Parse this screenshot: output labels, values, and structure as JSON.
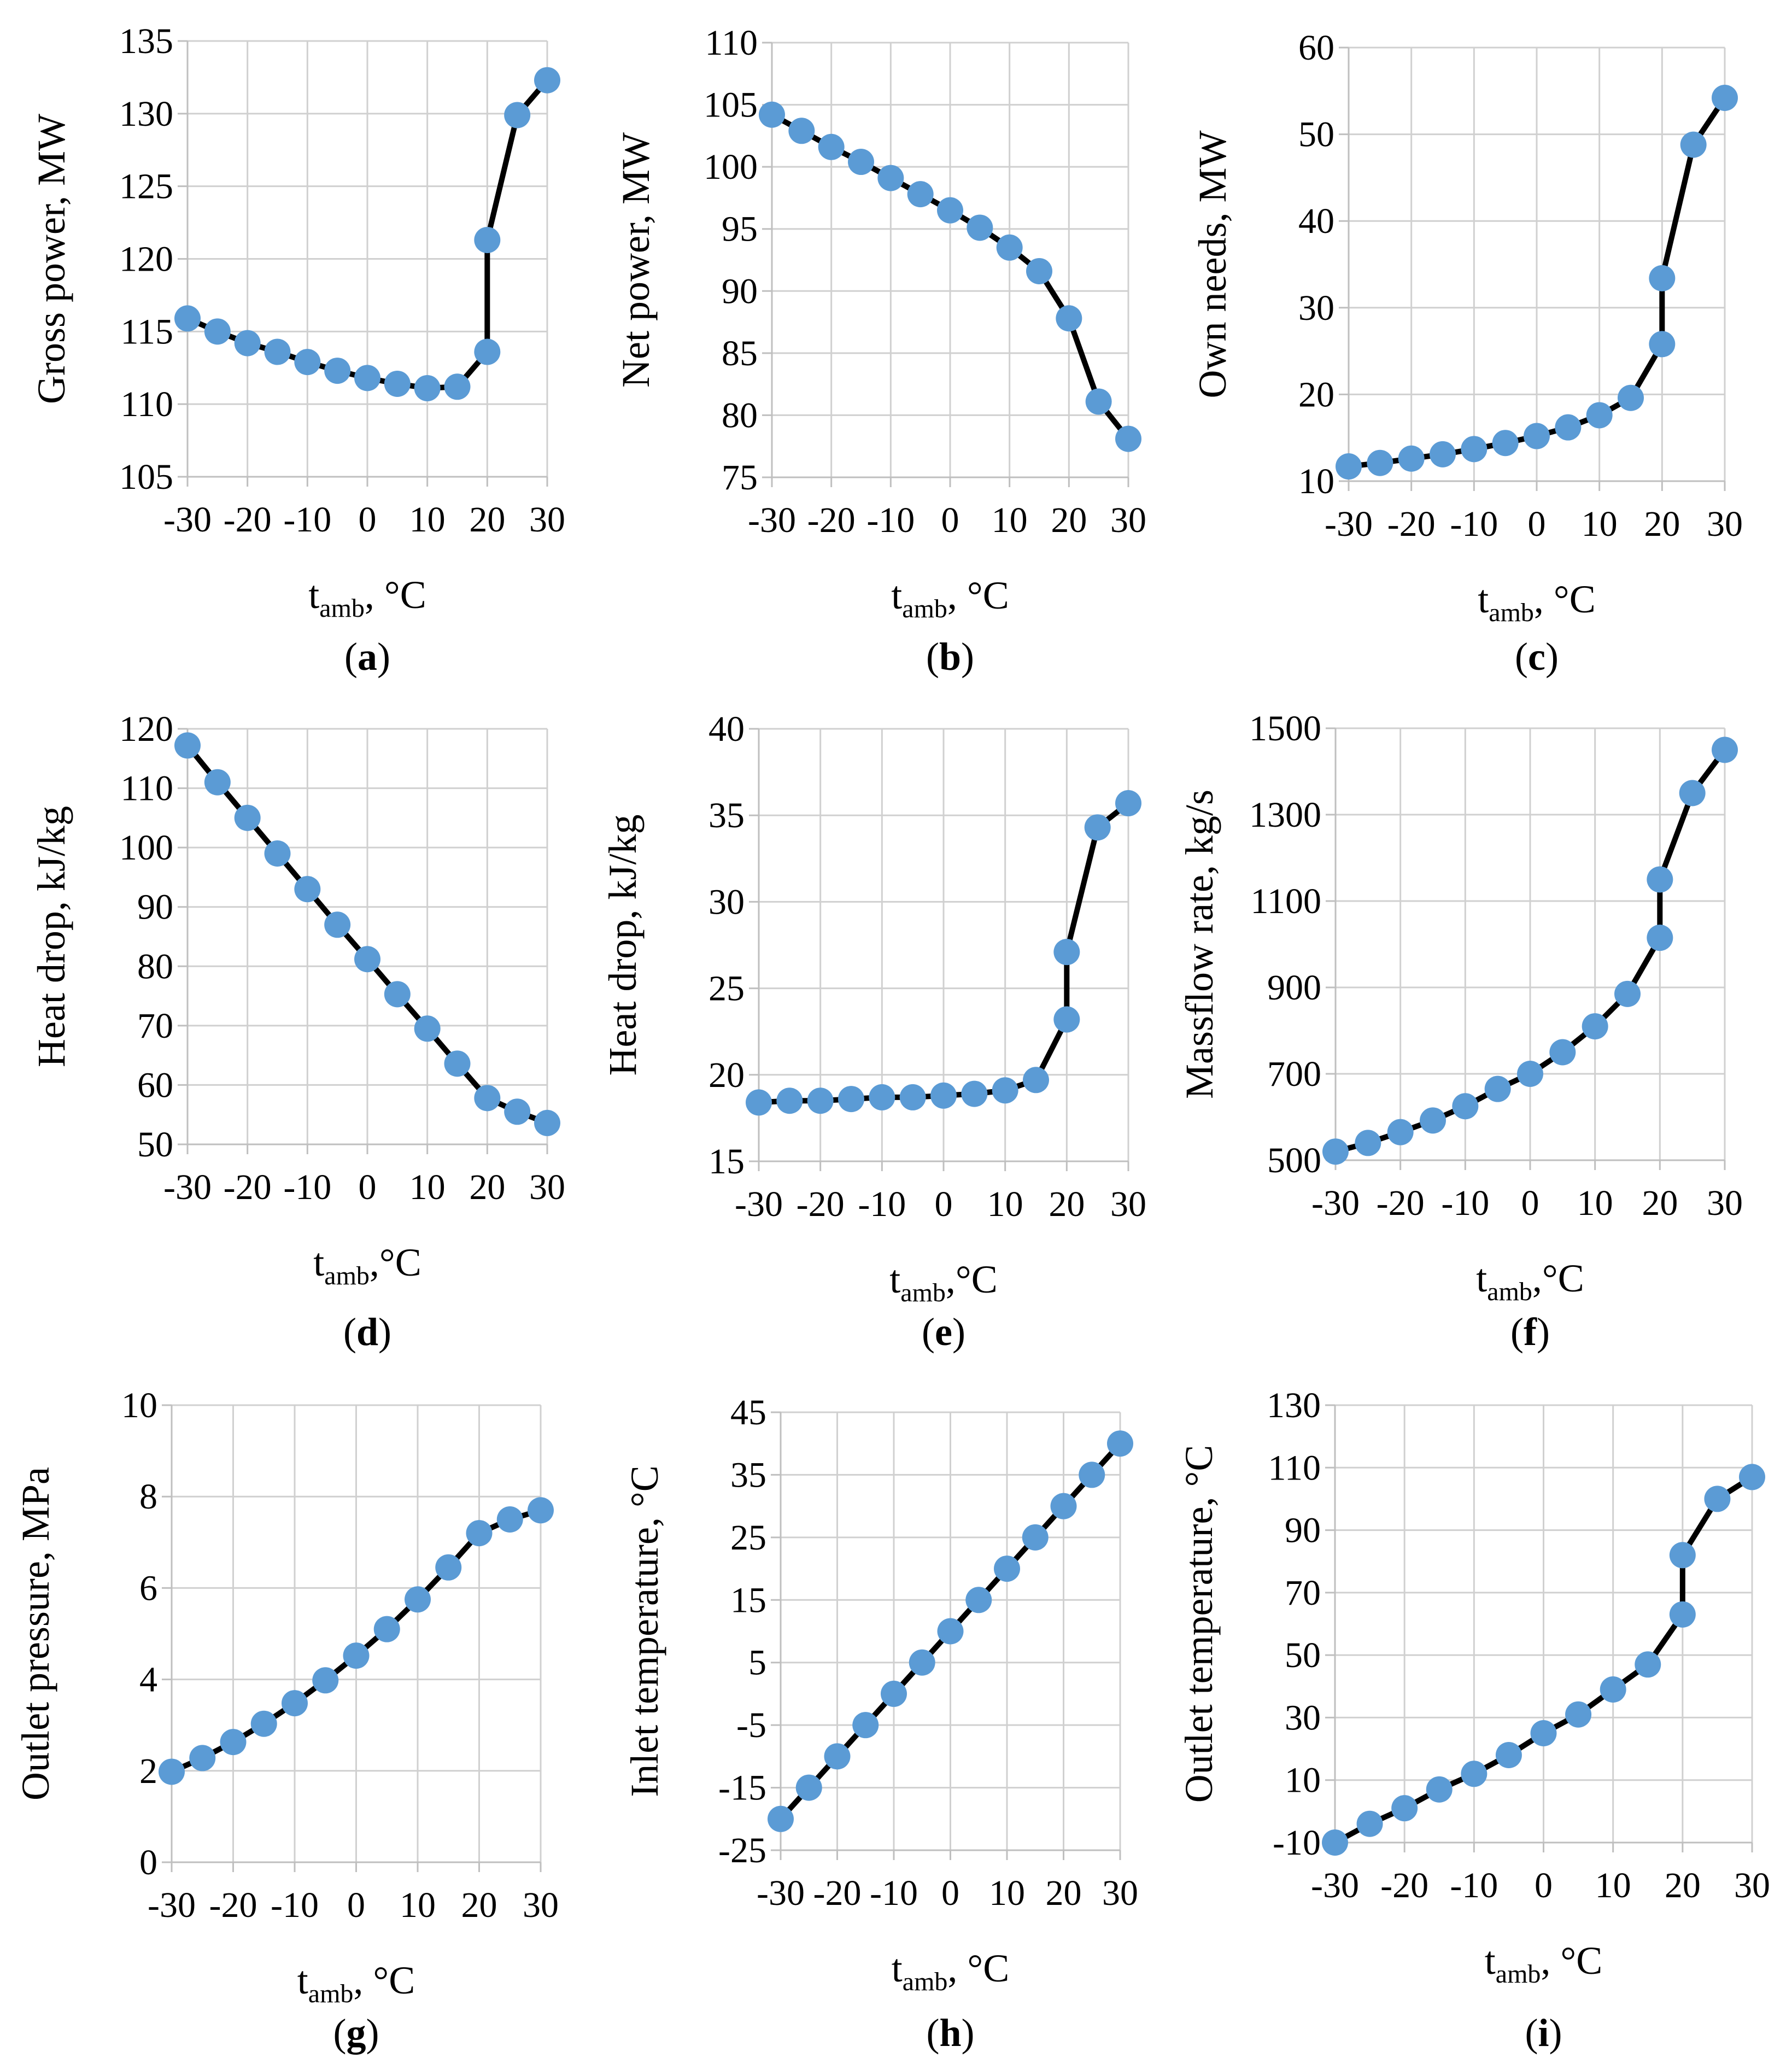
{
  "figure": {
    "colors": {
      "line": "#000000",
      "marker": "#5b9bd5",
      "grid": "#d0d0d0",
      "axis": "#bfbfbf"
    },
    "x_common": [
      -30,
      -25,
      -20,
      -15,
      -10,
      -5,
      0,
      5,
      10,
      15,
      20,
      20,
      25,
      30
    ]
  },
  "chart_data": [
    {
      "id": "a",
      "caption": "a",
      "type": "line",
      "ylabel": "Gross power, MW",
      "xlabel_main": "t",
      "xlabel_sub": "amb",
      "xlabel_unit": ", °C",
      "ylim": [
        105,
        135
      ],
      "yticks": [
        105,
        110,
        115,
        120,
        125,
        130,
        135
      ],
      "xlim": [
        -30,
        30
      ],
      "xticks": [
        -30,
        -20,
        -10,
        0,
        10,
        20,
        30
      ],
      "x": [
        -30,
        -25,
        -20,
        -15,
        -10,
        -5,
        0,
        5,
        10,
        15,
        20,
        20,
        25,
        30
      ],
      "y": [
        115.9,
        115.0,
        114.2,
        113.6,
        112.9,
        112.3,
        111.8,
        111.4,
        111.1,
        111.2,
        113.6,
        121.3,
        129.9,
        132.3
      ]
    },
    {
      "id": "b",
      "caption": "b",
      "type": "line",
      "ylabel": "Net power, MW",
      "xlabel_main": "t",
      "xlabel_sub": "amb",
      "xlabel_unit": ", °C",
      "ylim": [
        75,
        110
      ],
      "yticks": [
        75,
        80,
        85,
        90,
        95,
        100,
        105,
        110
      ],
      "xlim": [
        -30,
        30
      ],
      "xticks": [
        -30,
        -20,
        -10,
        0,
        10,
        20,
        30
      ],
      "x": [
        -30,
        -25,
        -20,
        -15,
        -10,
        -5,
        0,
        5,
        10,
        15,
        20,
        25,
        30
      ],
      "y": [
        104.2,
        102.9,
        101.6,
        100.4,
        99.1,
        97.8,
        96.5,
        95.1,
        93.5,
        91.6,
        87.8,
        81.1,
        78.1
      ]
    },
    {
      "id": "c",
      "caption": "c",
      "type": "line",
      "ylabel": "Own needs, MW",
      "xlabel_main": "t",
      "xlabel_sub": "amb",
      "xlabel_unit": ", °C",
      "ylim": [
        10,
        60
      ],
      "yticks": [
        10,
        20,
        30,
        40,
        50,
        60
      ],
      "xlim": [
        -30,
        30
      ],
      "xticks": [
        -30,
        -20,
        -10,
        0,
        10,
        20,
        30
      ],
      "x": [
        -30,
        -25,
        -20,
        -15,
        -10,
        -5,
        0,
        5,
        10,
        15,
        20,
        20,
        25,
        30
      ],
      "y": [
        11.7,
        12.1,
        12.6,
        13.1,
        13.7,
        14.4,
        15.2,
        16.2,
        17.6,
        19.6,
        25.8,
        33.4,
        48.8,
        54.2
      ]
    },
    {
      "id": "d",
      "caption": "d",
      "type": "line",
      "ylabel": "Heat drop, kJ/kg",
      "xlabel_main": "t",
      "xlabel_sub": "amb",
      "xlabel_unit": ",°C",
      "ylim": [
        50,
        120
      ],
      "yticks": [
        50,
        60,
        70,
        80,
        90,
        100,
        110,
        120
      ],
      "xlim": [
        -30,
        30
      ],
      "xticks": [
        -30,
        -20,
        -10,
        0,
        10,
        20,
        30
      ],
      "x": [
        -30,
        -25,
        -20,
        -15,
        -10,
        -5,
        0,
        5,
        10,
        15,
        20,
        25,
        30
      ],
      "y": [
        117.2,
        111.0,
        105.0,
        99.0,
        93.0,
        87.0,
        81.2,
        75.3,
        69.5,
        63.6,
        57.8,
        55.5,
        53.6
      ]
    },
    {
      "id": "e",
      "caption": "e",
      "type": "line",
      "ylabel": "Heat drop, kJ/kg",
      "xlabel_main": "t",
      "xlabel_sub": "amb",
      "xlabel_unit": ",°C",
      "ylim": [
        15,
        40
      ],
      "yticks": [
        15,
        20,
        25,
        30,
        35,
        40
      ],
      "xlim": [
        -30,
        30
      ],
      "xticks": [
        -30,
        -20,
        -10,
        0,
        10,
        20,
        30
      ],
      "x": [
        -30,
        -25,
        -20,
        -15,
        -10,
        -5,
        0,
        5,
        10,
        15,
        20,
        20,
        25,
        30
      ],
      "y": [
        18.4,
        18.5,
        18.5,
        18.6,
        18.7,
        18.7,
        18.8,
        18.9,
        19.1,
        19.7,
        23.2,
        27.1,
        34.3,
        35.7
      ]
    },
    {
      "id": "f",
      "caption": "f",
      "type": "line",
      "ylabel": "Massflow rate, kg/s",
      "xlabel_main": "t",
      "xlabel_sub": "amb",
      "xlabel_unit": ",°C",
      "ylim": [
        500,
        1500
      ],
      "yticks": [
        500,
        700,
        900,
        1100,
        1300,
        1500
      ],
      "xlim": [
        -30,
        30
      ],
      "xticks": [
        -30,
        -20,
        -10,
        0,
        10,
        20,
        30
      ],
      "x": [
        -30,
        -25,
        -20,
        -15,
        -10,
        -5,
        0,
        5,
        10,
        15,
        20,
        20,
        25,
        30
      ],
      "y": [
        520,
        540,
        565,
        592,
        625,
        665,
        700,
        750,
        810,
        885,
        1015,
        1150,
        1350,
        1450
      ]
    },
    {
      "id": "g",
      "caption": "g",
      "type": "line",
      "ylabel": "Outlet pressure, MPa",
      "xlabel_main": "t",
      "xlabel_sub": "amb",
      "xlabel_unit": ", °C",
      "ylim": [
        0,
        10
      ],
      "yticks": [
        0,
        2,
        4,
        6,
        8,
        10
      ],
      "xlim": [
        -30,
        30
      ],
      "xticks": [
        -30,
        -20,
        -10,
        0,
        10,
        20,
        30
      ],
      "x": [
        -30,
        -25,
        -20,
        -15,
        -10,
        -5,
        0,
        5,
        10,
        15,
        20,
        25,
        30
      ],
      "y": [
        1.98,
        2.28,
        2.63,
        3.03,
        3.48,
        3.98,
        4.52,
        5.1,
        5.75,
        6.45,
        7.2,
        7.5,
        7.7
      ]
    },
    {
      "id": "h",
      "caption": "h",
      "type": "line",
      "ylabel": "Inlet temperature, °C",
      "xlabel_main": "t",
      "xlabel_sub": "amb",
      "xlabel_unit": ", °C",
      "ylim": [
        -25,
        45
      ],
      "yticks": [
        -25,
        -15,
        -5,
        5,
        15,
        25,
        35,
        45
      ],
      "xlim": [
        -30,
        30
      ],
      "xticks": [
        -30,
        -20,
        -10,
        0,
        10,
        20,
        30
      ],
      "x": [
        -30,
        -25,
        -20,
        -15,
        -10,
        -5,
        0,
        5,
        10,
        15,
        20,
        25,
        30
      ],
      "y": [
        -20,
        -15,
        -10,
        -5,
        0,
        5,
        10,
        15,
        20,
        25,
        30,
        35,
        40
      ]
    },
    {
      "id": "i",
      "caption": "i",
      "type": "line",
      "ylabel": "Outlet temperature, °C",
      "xlabel_main": "t",
      "xlabel_sub": "amb",
      "xlabel_unit": ", °C",
      "ylim": [
        -10,
        130
      ],
      "yticks": [
        -10,
        10,
        30,
        50,
        70,
        90,
        110,
        130
      ],
      "xlim": [
        -30,
        30
      ],
      "xticks": [
        -30,
        -20,
        -10,
        0,
        10,
        20,
        30
      ],
      "x": [
        -30,
        -25,
        -20,
        -15,
        -10,
        -5,
        0,
        5,
        10,
        15,
        20,
        20,
        25,
        30
      ],
      "y": [
        -10,
        -4,
        1,
        7,
        12,
        18,
        25,
        31,
        39,
        47,
        63,
        82,
        100,
        107
      ]
    }
  ]
}
